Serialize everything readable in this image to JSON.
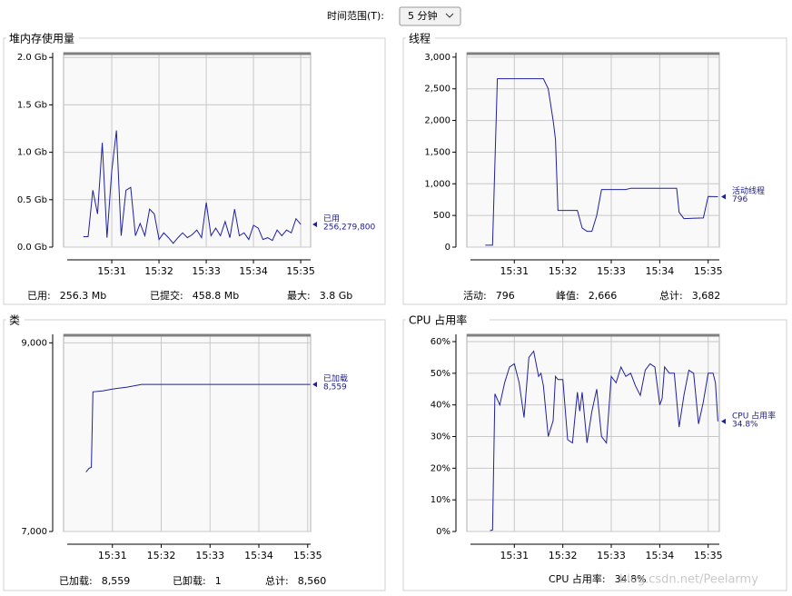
{
  "header": {
    "label": "时间范围(T):",
    "value": "5 分钟"
  },
  "watermark": "blog.csdn.net/Peelarmy",
  "panels": [
    {
      "title": "堆内存使用量",
      "chart": {
        "type": "line",
        "xlim": [
          29.98,
          35.21
        ],
        "xticks": [
          {
            "value": 31,
            "label": "15:31"
          },
          {
            "value": 32,
            "label": "15:32"
          },
          {
            "value": 33,
            "label": "15:33"
          },
          {
            "value": 34,
            "label": "15:34"
          },
          {
            "value": 35,
            "label": "15:35"
          }
        ],
        "ylim": [
          0,
          2.05
        ],
        "yticks": [
          {
            "value": 0,
            "label": "0.0 Gb"
          },
          {
            "value": 0.5,
            "label": "0.5 Gb"
          },
          {
            "value": 1,
            "label": "1.0 Gb"
          },
          {
            "value": 1.5,
            "label": "1.5 Gb"
          },
          {
            "value": 2,
            "label": "2.0 Gb"
          }
        ],
        "grid": true,
        "series": [
          {
            "name": "已用",
            "color": "#2020a0",
            "current": "256,279,800",
            "x": [
              30.4,
              30.5,
              30.6,
              30.7,
              30.8,
              30.9,
              31.0,
              31.1,
              31.2,
              31.3,
              31.4,
              31.5,
              31.6,
              31.7,
              31.8,
              31.9,
              32.0,
              32.1,
              32.2,
              32.3,
              32.4,
              32.5,
              32.6,
              32.7,
              32.8,
              32.9,
              33.0,
              33.1,
              33.2,
              33.3,
              33.4,
              33.5,
              33.6,
              33.7,
              33.8,
              33.9,
              34.0,
              34.1,
              34.2,
              34.3,
              34.4,
              34.5,
              34.6,
              34.7,
              34.8,
              34.9,
              35.0
            ],
            "values": [
              0.11,
              0.11,
              0.6,
              0.35,
              1.1,
              0.1,
              0.8,
              1.23,
              0.12,
              0.6,
              0.63,
              0.12,
              0.25,
              0.12,
              0.4,
              0.35,
              0.08,
              0.15,
              0.1,
              0.04,
              0.1,
              0.15,
              0.1,
              0.13,
              0.18,
              0.1,
              0.47,
              0.12,
              0.2,
              0.12,
              0.27,
              0.1,
              0.4,
              0.12,
              0.15,
              0.08,
              0.23,
              0.2,
              0.08,
              0.1,
              0.07,
              0.18,
              0.12,
              0.18,
              0.15,
              0.3,
              0.24
            ]
          }
        ]
      },
      "footer": [
        {
          "label": "已用:",
          "value": "256.3 Mb"
        },
        {
          "label": "已提交:",
          "value": "458.8 Mb"
        },
        {
          "label": "最大:",
          "value": "3.8 Gb"
        }
      ]
    },
    {
      "title": "线程",
      "chart": {
        "type": "line",
        "xlim": [
          30.02,
          35.23
        ],
        "xticks": [
          {
            "value": 31,
            "label": "15:31"
          },
          {
            "value": 32,
            "label": "15:32"
          },
          {
            "value": 33,
            "label": "15:33"
          },
          {
            "value": 34,
            "label": "15:34"
          },
          {
            "value": 35,
            "label": "15:35"
          }
        ],
        "ylim": [
          0,
          3070
        ],
        "yticks": [
          0,
          500,
          {
            "value": 1000,
            "label": "1,000"
          },
          {
            "value": 1500,
            "label": "1,500"
          },
          {
            "value": 2000,
            "label": "2,000"
          },
          {
            "value": 2500,
            "label": "2,500"
          },
          {
            "value": 3000,
            "label": "3,000"
          }
        ],
        "grid": true,
        "series": [
          {
            "name": "活动线程",
            "color": "#2020a0",
            "current": "796",
            "x": [
              30.4,
              30.55,
              30.65,
              31.6,
              31.7,
              31.8,
              31.85,
              31.9,
              32.3,
              32.4,
              32.5,
              32.6,
              32.7,
              32.8,
              33.3,
              33.4,
              34.35,
              34.4,
              34.5,
              34.9,
              35.0,
              35.2
            ],
            "values": [
              30,
              30,
              2660,
              2660,
              2500,
              2000,
              1700,
              580,
              580,
              300,
              250,
              250,
              500,
              910,
              910,
              930,
              930,
              550,
              450,
              460,
              800,
              796
            ]
          }
        ]
      },
      "footer": [
        {
          "label": "活动:",
          "value": "796"
        },
        {
          "label": "峰值:",
          "value": "2,666"
        },
        {
          "label": "总计:",
          "value": "3,682"
        }
      ]
    },
    {
      "title": "类",
      "chart": {
        "type": "line",
        "xlim": [
          30.0,
          35.06
        ],
        "xticks": [
          {
            "value": 31,
            "label": "15:31"
          },
          {
            "value": 32,
            "label": "15:32"
          },
          {
            "value": 33,
            "label": "15:33"
          },
          {
            "value": 34,
            "label": "15:34"
          },
          {
            "value": 35,
            "label": "15:35"
          }
        ],
        "ylim": [
          7000,
          9090
        ],
        "yticks": [
          {
            "value": 7000,
            "label": "7,000"
          },
          {
            "value": 9000,
            "label": "9,000"
          }
        ],
        "grid": true,
        "series": [
          {
            "name": "已加载",
            "color": "#2020a0",
            "current": "8,559",
            "x": [
              30.46,
              30.52,
              30.57,
              30.6,
              30.8,
              31.0,
              31.3,
              31.6,
              35.05
            ],
            "values": [
              7630,
              7670,
              7680,
              8480,
              8490,
              8510,
              8530,
              8559,
              8559
            ]
          }
        ]
      },
      "footer": [
        {
          "label": "已加载:",
          "value": "8,559"
        },
        {
          "label": "已卸载:",
          "value": "1"
        },
        {
          "label": "总计:",
          "value": "8,560"
        }
      ]
    },
    {
      "title": "CPU 占用率",
      "chart": {
        "type": "line",
        "xlim": [
          30.02,
          35.23
        ],
        "xticks": [
          {
            "value": 31,
            "label": "15:31"
          },
          {
            "value": 32,
            "label": "15:32"
          },
          {
            "value": 33,
            "label": "15:33"
          },
          {
            "value": 34,
            "label": "15:34"
          },
          {
            "value": 35,
            "label": "15:35"
          }
        ],
        "ylim": [
          0,
          62.3
        ],
        "yticks": [
          {
            "value": 0,
            "label": "0%"
          },
          {
            "value": 10,
            "label": "10%"
          },
          {
            "value": 20,
            "label": "20%"
          },
          {
            "value": 30,
            "label": "30%"
          },
          {
            "value": 40,
            "label": "40%"
          },
          {
            "value": 50,
            "label": "50%"
          },
          {
            "value": 60,
            "label": "60%"
          }
        ],
        "grid": true,
        "series": [
          {
            "name": "CPU 占用率",
            "color": "#2020a0",
            "current": "34.8%",
            "x": [
              30.5,
              30.55,
              30.6,
              30.7,
              30.8,
              30.9,
              31.0,
              31.1,
              31.2,
              31.3,
              31.4,
              31.5,
              31.55,
              31.6,
              31.7,
              31.8,
              31.85,
              31.9,
              32.0,
              32.1,
              32.2,
              32.3,
              32.35,
              32.4,
              32.5,
              32.6,
              32.7,
              32.8,
              32.9,
              33.0,
              33.1,
              33.2,
              33.3,
              33.4,
              33.5,
              33.6,
              33.7,
              33.8,
              33.9,
              34.0,
              34.05,
              34.1,
              34.2,
              34.3,
              34.4,
              34.5,
              34.6,
              34.7,
              34.8,
              34.9,
              35.0,
              35.1,
              35.15,
              35.2
            ],
            "values": [
              0.3,
              0.5,
              43.5,
              40,
              47,
              52,
              53,
              47,
              36,
              55,
              57,
              49,
              50,
              46,
              30,
              35,
              49,
              48,
              48,
              29,
              28,
              44,
              38,
              44,
              28,
              38,
              45,
              30,
              28,
              49,
              47,
              52,
              49,
              50,
              46,
              43,
              51,
              53,
              52,
              40,
              42,
              52,
              50,
              50,
              33,
              43,
              51,
              50,
              34,
              41,
              50,
              50,
              47,
              34.8
            ]
          }
        ]
      },
      "footer": [
        {
          "label": "CPU 占用率:",
          "value": "34.8%"
        }
      ]
    }
  ]
}
